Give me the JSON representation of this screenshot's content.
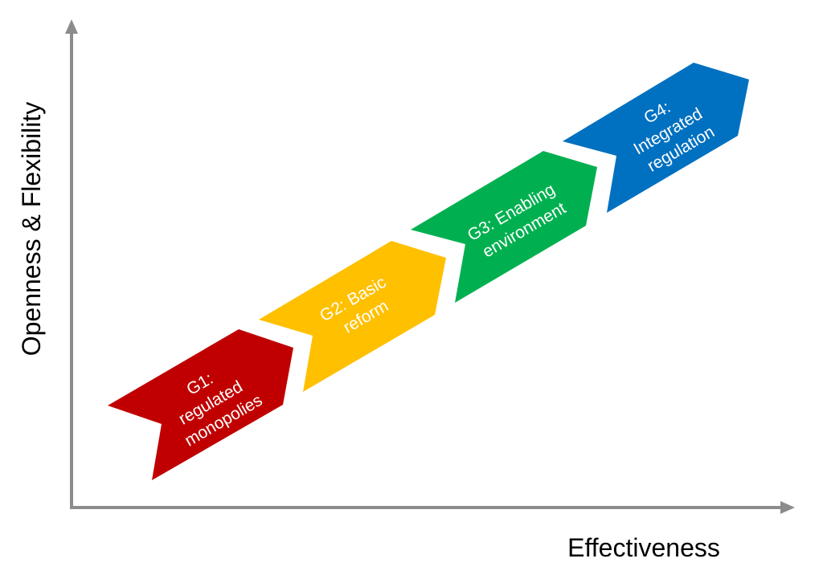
{
  "axes": {
    "y_label": "Openness & Flexibility",
    "x_label": "Effectiveness",
    "color": "#8c8c8c"
  },
  "generations": [
    {
      "lines": [
        "G1:",
        "regulated",
        "monopolies"
      ],
      "color": "#c00000"
    },
    {
      "lines": [
        "G2: Basic",
        "reform"
      ],
      "color": "#ffc000"
    },
    {
      "lines": [
        "G3: Enabling",
        "environment"
      ],
      "color": "#00b050"
    },
    {
      "lines": [
        "G4:",
        "Integrated",
        "regulation"
      ],
      "color": "#0070c0"
    }
  ]
}
